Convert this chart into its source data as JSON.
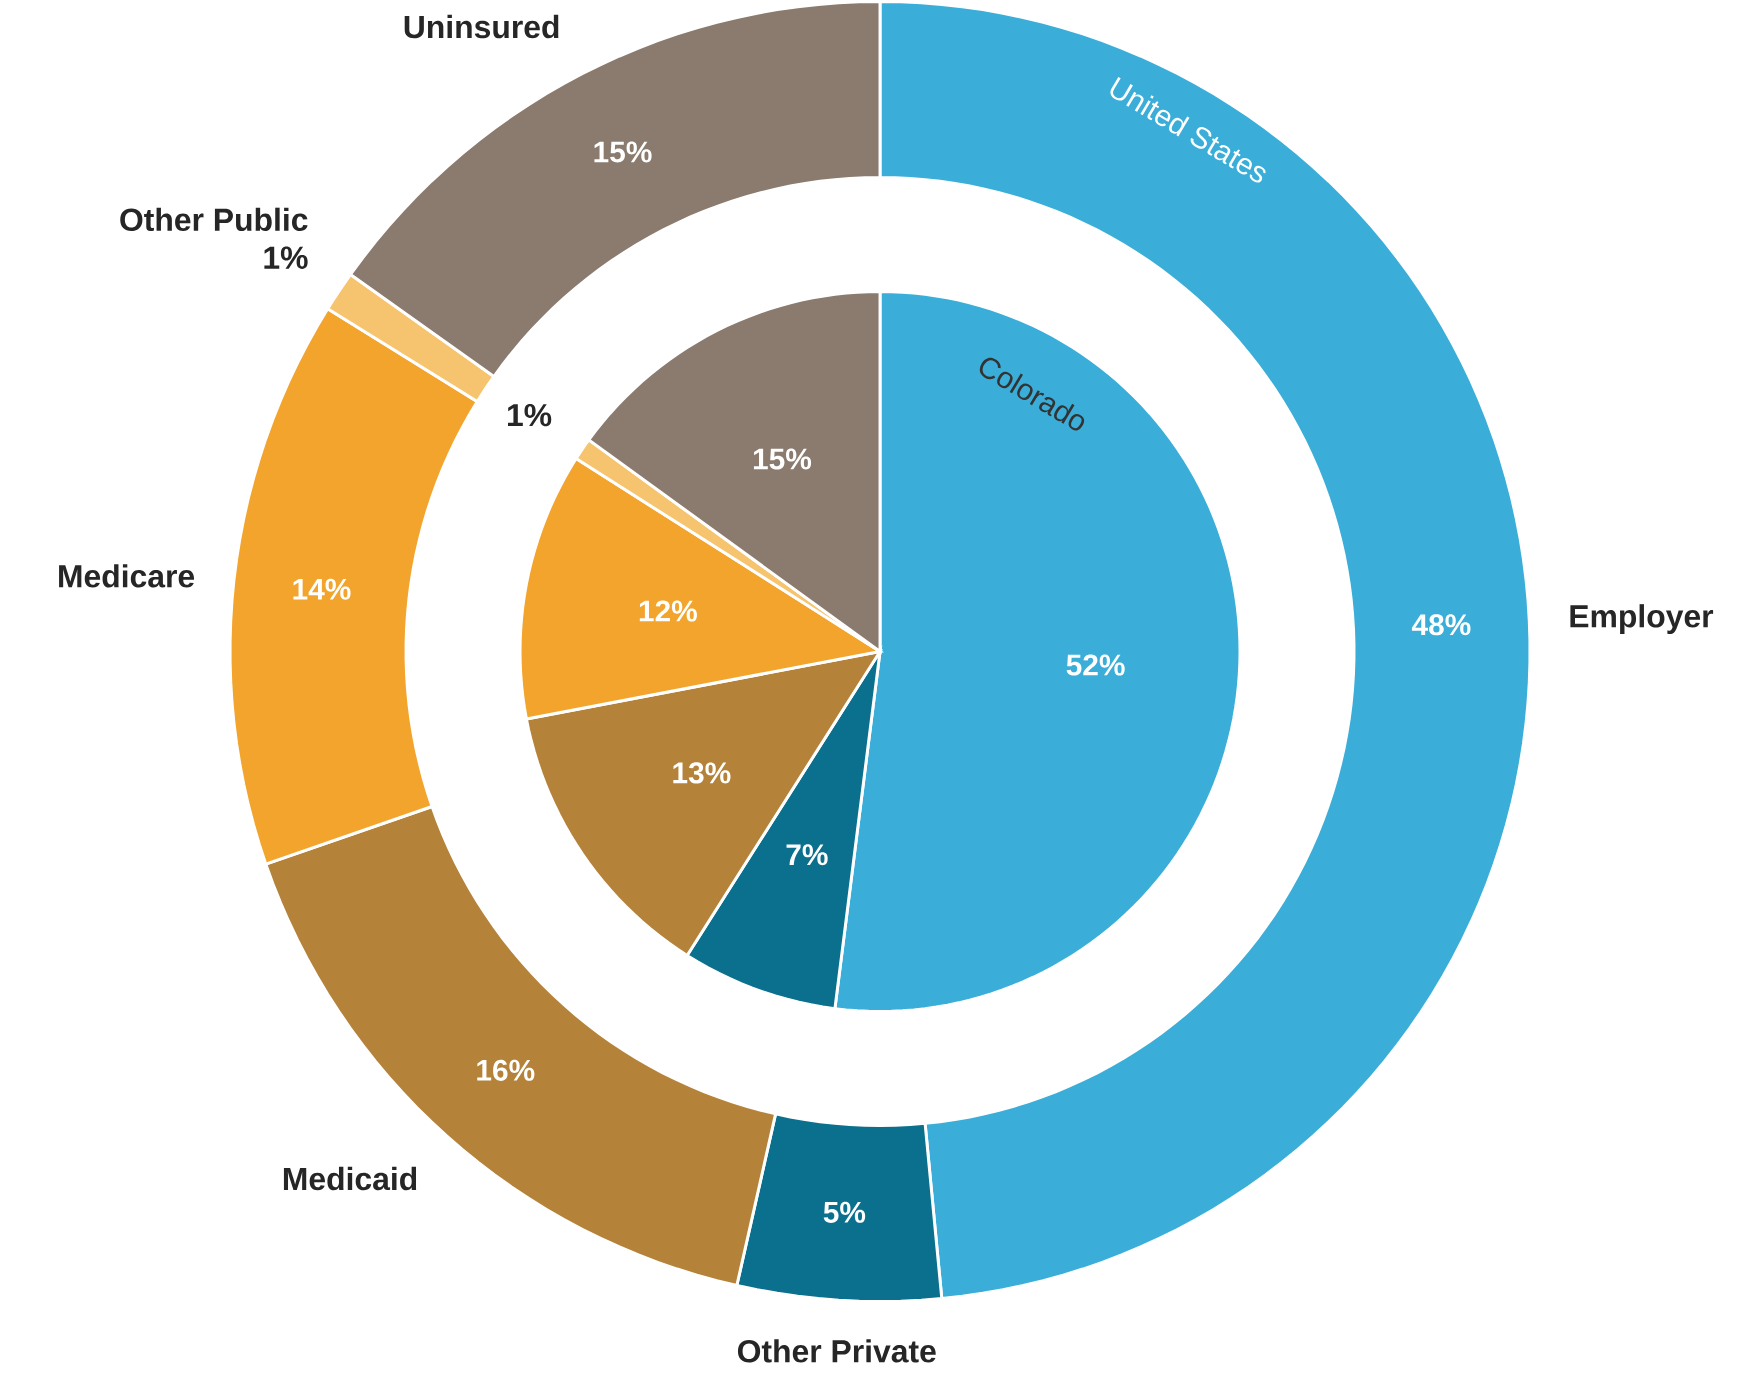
{
  "chart_data": [
    {
      "type": "donut",
      "title": "United States",
      "categories": [
        "Employer",
        "Other Private",
        "Medicaid",
        "Medicare",
        "Other Public",
        "Uninsured"
      ],
      "values": [
        48,
        5,
        16,
        14,
        1,
        15
      ],
      "value_labels": [
        "48%",
        "5%",
        "16%",
        "14%",
        "1%",
        "15%"
      ],
      "colors": [
        "#3aaed8",
        "#0b6f8e",
        "#b5823a",
        "#f2a42d",
        "#f6c46f",
        "#8a7b6e"
      ]
    },
    {
      "type": "pie",
      "title": "Colorado",
      "categories": [
        null,
        null,
        null,
        null,
        null,
        null
      ],
      "values": [
        52,
        7,
        13,
        12,
        1,
        15
      ],
      "value_labels": [
        "52%",
        "7%",
        "13%",
        "12%",
        "1%",
        "15%"
      ],
      "colors": [
        "#3aaed8",
        "#0b6f8e",
        "#b5823a",
        "#f2a42d",
        "#f6c46f",
        "#8a7b6e"
      ]
    }
  ]
}
